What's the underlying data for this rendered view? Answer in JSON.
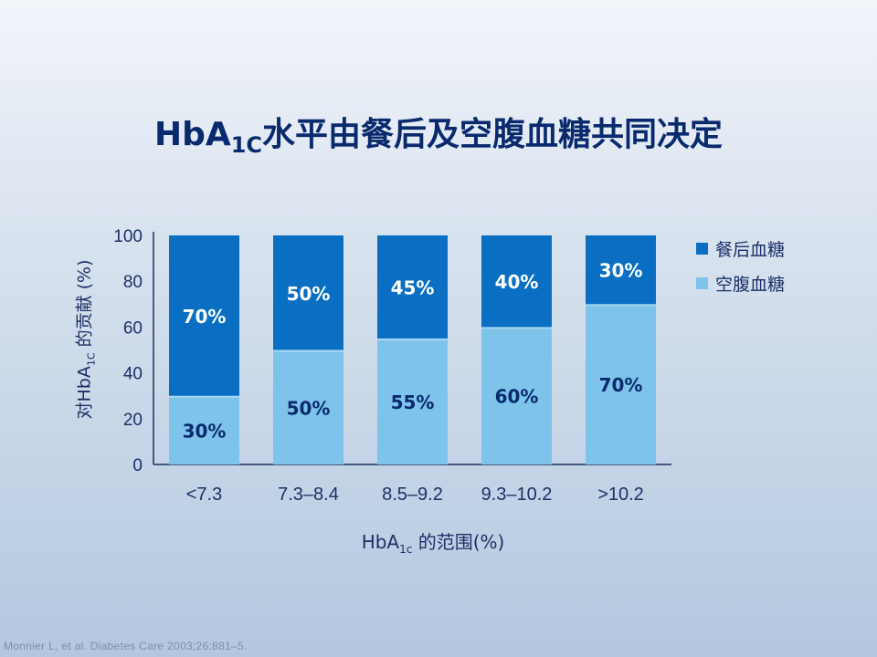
{
  "title": {
    "main": "HbA",
    "sub": "1C",
    "rest": "水平由餐后及空腹血糖共同决定"
  },
  "ylabel": {
    "pre": "对HbA",
    "sub": "1C",
    "post": " 的贡献 (%)"
  },
  "xlabel": {
    "pre": "HbA",
    "sub": "1c",
    "post": " 的范围(%)"
  },
  "footnote": "Monnier L, et al. Diabetes Care 2003;26:881–5.",
  "colors": {
    "postprandial": "#0a6fc2",
    "fasting": "#7ec3ea",
    "axis": "#1c2f66",
    "label": "#0a2a6e"
  },
  "chart_data": {
    "type": "bar",
    "stacked": true,
    "categories": [
      "<7.3",
      "7.3–8.4",
      "8.5–9.2",
      "9.3–10.2",
      ">10.2"
    ],
    "series": [
      {
        "name": "空腹血糖",
        "values": [
          30,
          50,
          55,
          60,
          70
        ],
        "labels": [
          "30%",
          "50%",
          "55%",
          "60%",
          "70%"
        ]
      },
      {
        "name": "餐后血糖",
        "values": [
          70,
          50,
          45,
          40,
          30
        ],
        "labels": [
          "70%",
          "50%",
          "45%",
          "40%",
          "30%"
        ]
      }
    ],
    "ylim": [
      0,
      100
    ],
    "yticks": [
      "0",
      "20",
      "40",
      "60",
      "80",
      "100"
    ],
    "legend": [
      "餐后血糖",
      "空腹血糖"
    ],
    "legend_position": "right",
    "grid": false
  }
}
